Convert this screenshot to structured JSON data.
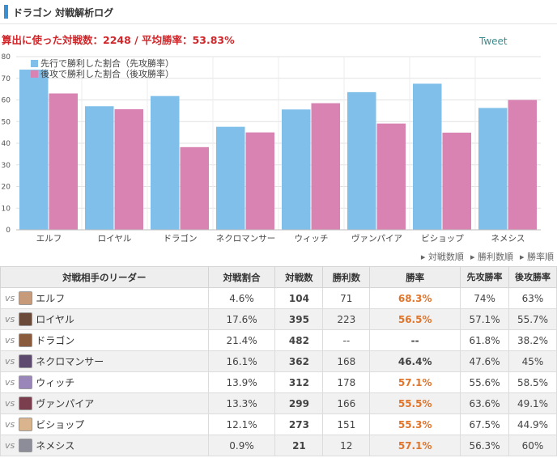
{
  "header": {
    "title": "ドラゴン 対戦解析ログ"
  },
  "summary": "算出に使った対戦数：2248 / 平均勝率：53.83%",
  "tweet_label": "Tweet",
  "colors": {
    "first": "#7fbfe9",
    "second": "#d883b1",
    "accent": "#e0752b",
    "summary": "#d0262a"
  },
  "chart_data": {
    "type": "bar",
    "categories": [
      "エルフ",
      "ロイヤル",
      "ドラゴン",
      "ネクロマンサー",
      "ウィッチ",
      "ヴァンパイア",
      "ビショップ",
      "ネメシス"
    ],
    "series": [
      {
        "name": "先行で勝利した割合（先攻勝率）",
        "values": [
          74,
          57.1,
          61.8,
          47.6,
          55.6,
          63.6,
          67.5,
          56.3
        ]
      },
      {
        "name": "後攻で勝利した割合（後攻勝率）",
        "values": [
          63,
          55.7,
          38.2,
          45,
          58.5,
          49.1,
          44.9,
          60
        ]
      }
    ],
    "yticks": [
      0,
      10,
      20,
      30,
      40,
      50,
      60,
      70,
      80
    ],
    "ylim": [
      0,
      80
    ],
    "grid": true,
    "legend": "top-left"
  },
  "sort_links": [
    "対戦数順",
    "勝利数順",
    "勝率順"
  ],
  "table": {
    "headers": [
      "対戦相手のリーダー",
      "対戦割合",
      "対戦数",
      "勝利数",
      "勝率",
      "先攻勝率",
      "後攻勝率"
    ],
    "vs_label": "vs",
    "rows": [
      {
        "leader": "エルフ",
        "share": "4.6%",
        "games": "104",
        "wins": "71",
        "rate": "68.3%",
        "first": "74%",
        "second": "63%",
        "hi": true,
        "avatar": "#c79a7a"
      },
      {
        "leader": "ロイヤル",
        "share": "17.6%",
        "games": "395",
        "wins": "223",
        "rate": "56.5%",
        "first": "57.1%",
        "second": "55.7%",
        "hi": true,
        "avatar": "#6b4a3a"
      },
      {
        "leader": "ドラゴン",
        "share": "21.4%",
        "games": "482",
        "wins": "--",
        "rate": "--",
        "first": "61.8%",
        "second": "38.2%",
        "hi": false,
        "avatar": "#8a5a3c"
      },
      {
        "leader": "ネクロマンサー",
        "share": "16.1%",
        "games": "362",
        "wins": "168",
        "rate": "46.4%",
        "first": "47.6%",
        "second": "45%",
        "hi": false,
        "avatar": "#5e4a6e"
      },
      {
        "leader": "ウィッチ",
        "share": "13.9%",
        "games": "312",
        "wins": "178",
        "rate": "57.1%",
        "first": "55.6%",
        "second": "58.5%",
        "hi": true,
        "avatar": "#9a86b8"
      },
      {
        "leader": "ヴァンパイア",
        "share": "13.3%",
        "games": "299",
        "wins": "166",
        "rate": "55.5%",
        "first": "63.6%",
        "second": "49.1%",
        "hi": true,
        "avatar": "#7a3e4e"
      },
      {
        "leader": "ビショップ",
        "share": "12.1%",
        "games": "273",
        "wins": "151",
        "rate": "55.3%",
        "first": "67.5%",
        "second": "44.9%",
        "hi": true,
        "avatar": "#d9b48c"
      },
      {
        "leader": "ネメシス",
        "share": "0.9%",
        "games": "21",
        "wins": "12",
        "rate": "57.1%",
        "first": "56.3%",
        "second": "60%",
        "hi": true,
        "avatar": "#8d8d9a"
      }
    ]
  }
}
